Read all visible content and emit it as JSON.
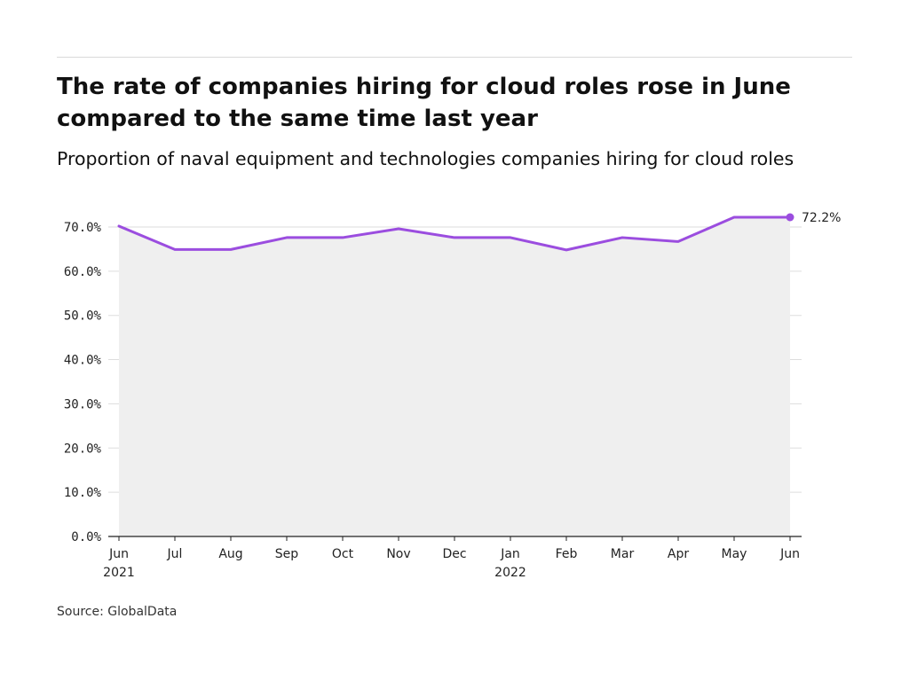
{
  "header": {
    "title": "The rate of companies hiring for cloud roles rose in June compared to the same time last year",
    "subtitle": "Proportion of naval equipment and technologies companies hiring for cloud roles"
  },
  "footer": {
    "source": "Source: GlobalData"
  },
  "colors": {
    "line": "#9b4ddf",
    "area": "#efefef",
    "grid": "#dddddd",
    "axis": "#222222"
  },
  "chart_data": {
    "type": "line",
    "title": "The rate of companies hiring for cloud roles rose in June compared to the same time last year",
    "subtitle": "Proportion of naval equipment and technologies companies hiring for cloud roles",
    "xlabel": "",
    "ylabel": "",
    "categories": [
      "Jun",
      "Jul",
      "Aug",
      "Sep",
      "Oct",
      "Nov",
      "Dec",
      "Jan",
      "Feb",
      "Mar",
      "Apr",
      "May",
      "Jun"
    ],
    "year_labels": [
      "2021",
      "",
      "",
      "",
      "",
      "",
      "",
      "2022",
      "",
      "",
      "",
      "",
      ""
    ],
    "series": [
      {
        "values": [
          70.2,
          64.9,
          64.9,
          67.6,
          67.6,
          69.6,
          67.6,
          67.6,
          64.8,
          67.6,
          66.7,
          72.2,
          72.2
        ]
      }
    ],
    "end_label": "72.2%",
    "y_ticks": [
      "0.0%",
      "10.0%",
      "20.0%",
      "30.0%",
      "40.0%",
      "50.0%",
      "60.0%",
      "70.0%"
    ],
    "y_tick_values": [
      0,
      10,
      20,
      30,
      40,
      50,
      60,
      70
    ],
    "ylim": [
      0,
      72.2
    ],
    "grid": true,
    "legend": "none"
  }
}
